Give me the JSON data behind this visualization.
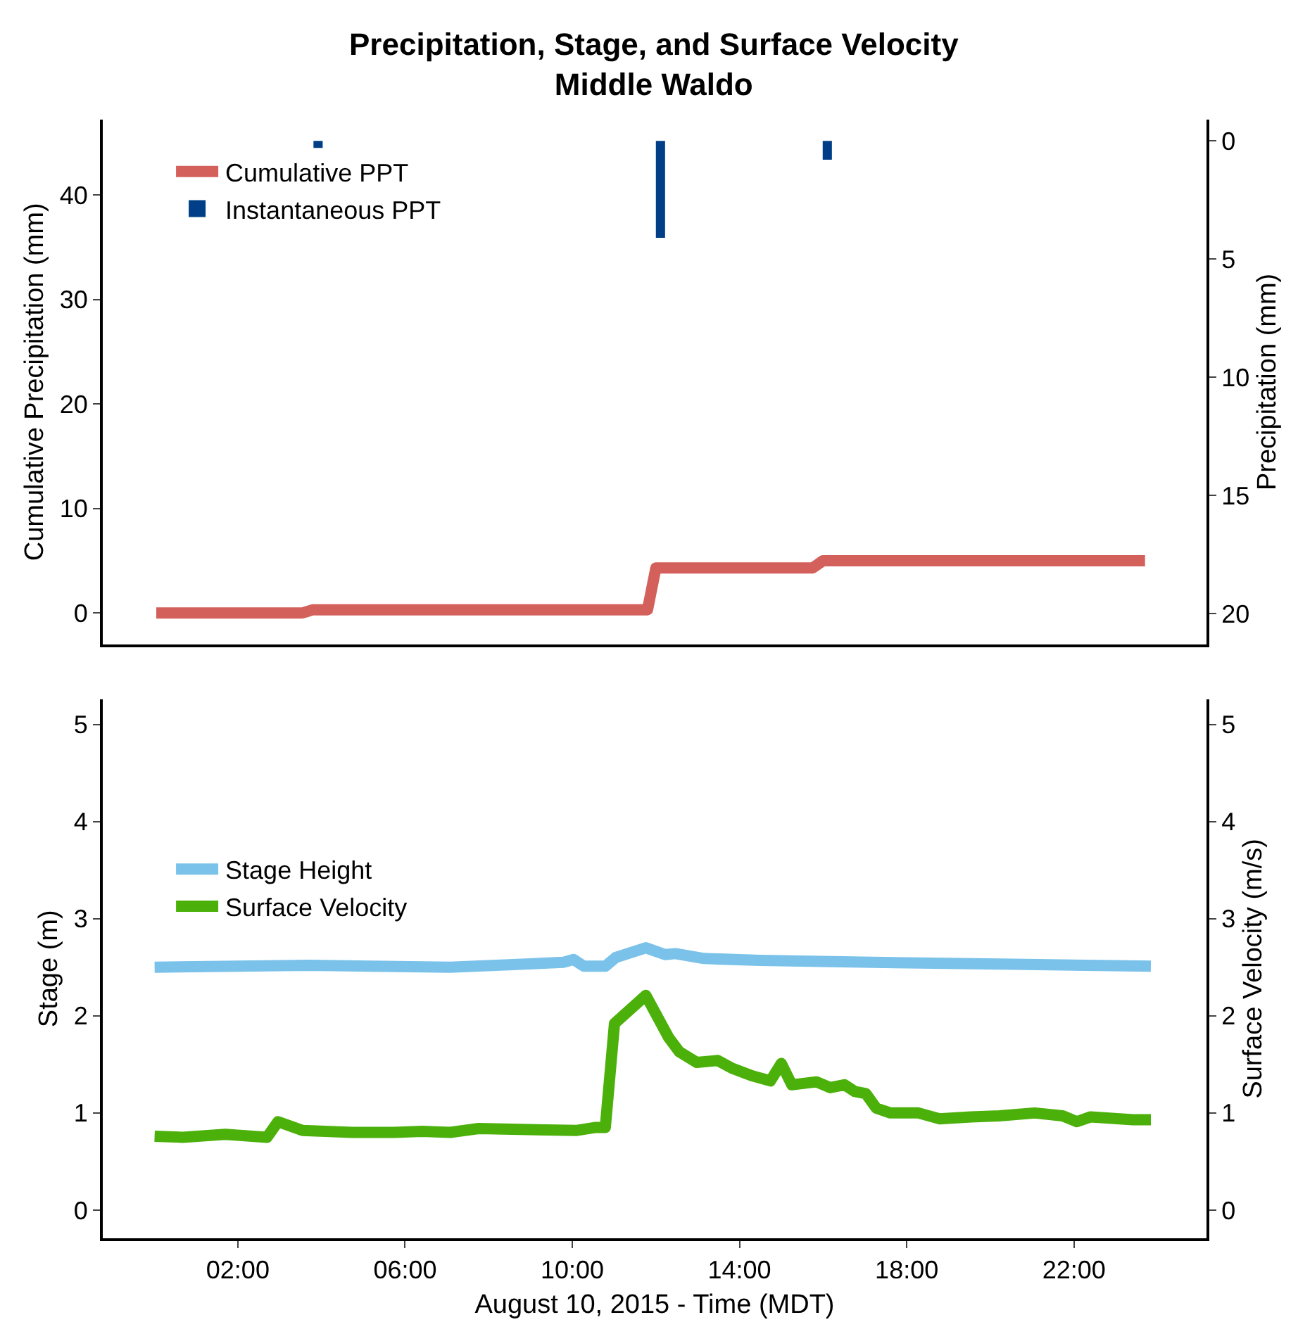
{
  "chart_data": [
    {
      "type": "line",
      "title": "Precipitation, Stage, and Surface Velocity\nMiddle Waldo",
      "ylabel": "Cumulative Precipitation (mm)",
      "y2label": "Precipitation (mm)",
      "xlim": [
        -1.23,
        25.17
      ],
      "ylim": [
        -3.0,
        47.2
      ],
      "yticks": [
        0,
        10,
        20,
        30,
        40
      ],
      "y2lim": [
        21.3,
        -0.9
      ],
      "y2ticks": [
        0,
        5,
        10,
        15,
        20
      ],
      "legend": "top left",
      "tick_labels": "y",
      "series": [
        {
          "name": "Cumulative PPT",
          "color": "#d4605b",
          "axis": "y",
          "x": [
            0.05,
            3.55,
            3.8,
            11.8,
            12.0,
            15.75,
            16.0,
            23.7
          ],
          "values": [
            0,
            0,
            0.3,
            0.3,
            4.3,
            4.3,
            5.0,
            5.0
          ]
        },
        {
          "name": "Instantaneous PPT",
          "color": "#003f87",
          "type": "bar",
          "axis": "y2",
          "x": [
            3.92,
            12.11,
            16.1
          ],
          "values": [
            0.3,
            4.1,
            0.8
          ]
        }
      ]
    },
    {
      "type": "line",
      "xlabel": "August 10, 2015 - Time (MDT)",
      "ylabel": "Stage (m)",
      "y2label": "Surface Velocity (m/s)",
      "xlim": [
        -1.23,
        25.17
      ],
      "xticks": [
        {
          "value": 2,
          "label": "02:00"
        },
        {
          "value": 6,
          "label": "06:00"
        },
        {
          "value": 10,
          "label": "10:00"
        },
        {
          "value": 14,
          "label": "14:00"
        },
        {
          "value": 18,
          "label": "18:00"
        },
        {
          "value": 22,
          "label": "22:00"
        }
      ],
      "ylim": [
        -0.29,
        5.26
      ],
      "yticks": [
        0,
        1,
        2,
        3,
        4,
        5
      ],
      "y2lim": [
        -0.29,
        5.26
      ],
      "y2ticks": [
        0,
        1,
        2,
        3,
        4,
        5
      ],
      "legend": "left",
      "series": [
        {
          "name": "Stage Height",
          "color": "#7bc2ea",
          "axis": "y",
          "x": [
            0.01,
            3.72,
            7.08,
            9.78,
            10.03,
            10.28,
            10.79,
            11.04,
            11.76,
            12.22,
            12.47,
            13.15,
            14.49,
            17.19,
            20.55,
            23.84
          ],
          "values": [
            2.5,
            2.52,
            2.5,
            2.55,
            2.58,
            2.51,
            2.51,
            2.6,
            2.7,
            2.63,
            2.64,
            2.59,
            2.57,
            2.55,
            2.53,
            2.51
          ]
        },
        {
          "name": "Surface Velocity",
          "color": "#4cb00a",
          "axis": "y2",
          "x": [
            0.01,
            0.68,
            1.7,
            2.7,
            2.96,
            3.55,
            4.73,
            5.74,
            6.41,
            7.08,
            7.76,
            8.77,
            10.11,
            10.54,
            10.79,
            11.01,
            11.76,
            12.3,
            12.56,
            12.98,
            13.48,
            13.82,
            14.32,
            14.74,
            15.0,
            15.25,
            15.84,
            16.17,
            16.51,
            16.76,
            17.02,
            17.27,
            17.61,
            18.28,
            18.78,
            19.54,
            20.21,
            21.06,
            21.73,
            22.07,
            22.4,
            23.41,
            23.84
          ],
          "values": [
            0.76,
            0.75,
            0.78,
            0.75,
            0.91,
            0.82,
            0.8,
            0.8,
            0.81,
            0.8,
            0.84,
            0.83,
            0.82,
            0.85,
            0.85,
            1.92,
            2.21,
            1.78,
            1.63,
            1.52,
            1.54,
            1.46,
            1.38,
            1.33,
            1.51,
            1.29,
            1.32,
            1.26,
            1.29,
            1.22,
            1.2,
            1.05,
            1.0,
            1.0,
            0.94,
            0.96,
            0.97,
            1.0,
            0.97,
            0.91,
            0.96,
            0.93,
            0.93
          ]
        }
      ]
    }
  ]
}
